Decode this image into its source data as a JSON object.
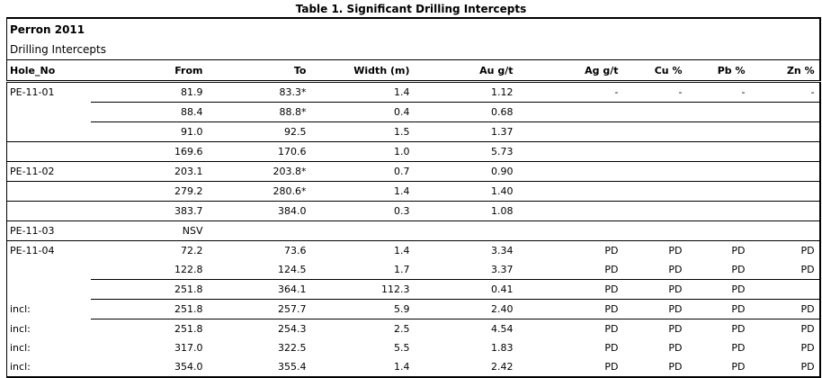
{
  "title": "Table 1. Significant Drilling Intercepts",
  "table": {
    "subtitle1": "Perron 2011",
    "subtitle2": "Drilling Intercepts",
    "columns": [
      "Hole_No",
      "From",
      "To",
      "Width (m)",
      "Au g/t",
      "Ag g/t",
      "Cu %",
      "Pb %",
      "Zn %"
    ],
    "rows": [
      {
        "hole": "PE-11-01",
        "from": "81.9",
        "to": "83.3*",
        "width": "1.4",
        "au": "1.12",
        "ag": "-",
        "cu": "-",
        "pb": "-",
        "zn": "-",
        "border": "partial",
        "bold": false
      },
      {
        "hole": "",
        "from": "88.4",
        "to": "88.8*",
        "width": "0.4",
        "au": "0.68",
        "ag": "",
        "cu": "",
        "pb": "",
        "zn": "",
        "border": "partial",
        "bold": false
      },
      {
        "hole": "",
        "from": "91.0",
        "to": "92.5",
        "width": "1.5",
        "au": "1.37",
        "ag": "",
        "cu": "",
        "pb": "",
        "zn": "",
        "border": "full",
        "bold": false
      },
      {
        "hole": "",
        "from": "169.6",
        "to": "170.6",
        "width": "1.0",
        "au": "5.73",
        "ag": "",
        "cu": "",
        "pb": "",
        "zn": "",
        "border": "full",
        "bold": false
      },
      {
        "hole": "PE-11-02",
        "from": "203.1",
        "to": "203.8*",
        "width": "0.7",
        "au": "0.90",
        "ag": "",
        "cu": "",
        "pb": "",
        "zn": "",
        "border": "full",
        "bold": false
      },
      {
        "hole": "",
        "from": "279.2",
        "to": "280.6*",
        "width": "1.4",
        "au": "1.40",
        "ag": "",
        "cu": "",
        "pb": "",
        "zn": "",
        "border": "full",
        "bold": false
      },
      {
        "hole": "",
        "from": "383.7",
        "to": "384.0",
        "width": "0.3",
        "au": "1.08",
        "ag": "",
        "cu": "",
        "pb": "",
        "zn": "",
        "border": "full",
        "bold": false
      },
      {
        "hole": "PE-11-03",
        "from": "NSV",
        "to": "",
        "width": "",
        "au": "",
        "ag": "",
        "cu": "",
        "pb": "",
        "zn": "",
        "border": "full",
        "bold": false
      },
      {
        "hole": "PE-11-04",
        "from": "72.2",
        "to": "73.6",
        "width": "1.4",
        "au": "3.34",
        "ag": "PD",
        "cu": "PD",
        "pb": "PD",
        "zn": "PD",
        "border": "none",
        "bold": false
      },
      {
        "hole": "",
        "from": "122.8",
        "to": "124.5",
        "width": "1.7",
        "au": "3.37",
        "ag": "PD",
        "cu": "PD",
        "pb": "PD",
        "zn": "PD",
        "border": "partial",
        "bold": false
      },
      {
        "hole": "",
        "from": "251.8",
        "to": "364.1",
        "width": "112.3",
        "au": "0.41",
        "ag": "PD",
        "cu": "PD",
        "pb": "PD",
        "zn": "",
        "border": "partial",
        "bold": true
      },
      {
        "hole": "incl:",
        "from": "251.8",
        "to": "257.7",
        "width": "5.9",
        "au": "2.40",
        "ag": "PD",
        "cu": "PD",
        "pb": "PD",
        "zn": "PD",
        "border": "partial",
        "bold": false
      },
      {
        "hole": "incl:",
        "from": "251.8",
        "to": "254.3",
        "width": "2.5",
        "au": "4.54",
        "ag": "PD",
        "cu": "PD",
        "pb": "PD",
        "zn": "PD",
        "border": "none",
        "bold": false
      },
      {
        "hole": "incl:",
        "from": "317.0",
        "to": "322.5",
        "width": "5.5",
        "au": "1.83",
        "ag": "PD",
        "cu": "PD",
        "pb": "PD",
        "zn": "PD",
        "border": "none",
        "bold": false
      },
      {
        "hole": "incl:",
        "from": "354.0",
        "to": "355.4",
        "width": "1.4",
        "au": "2.42",
        "ag": "PD",
        "cu": "PD",
        "pb": "PD",
        "zn": "PD",
        "border": "none",
        "bold": false
      }
    ]
  }
}
